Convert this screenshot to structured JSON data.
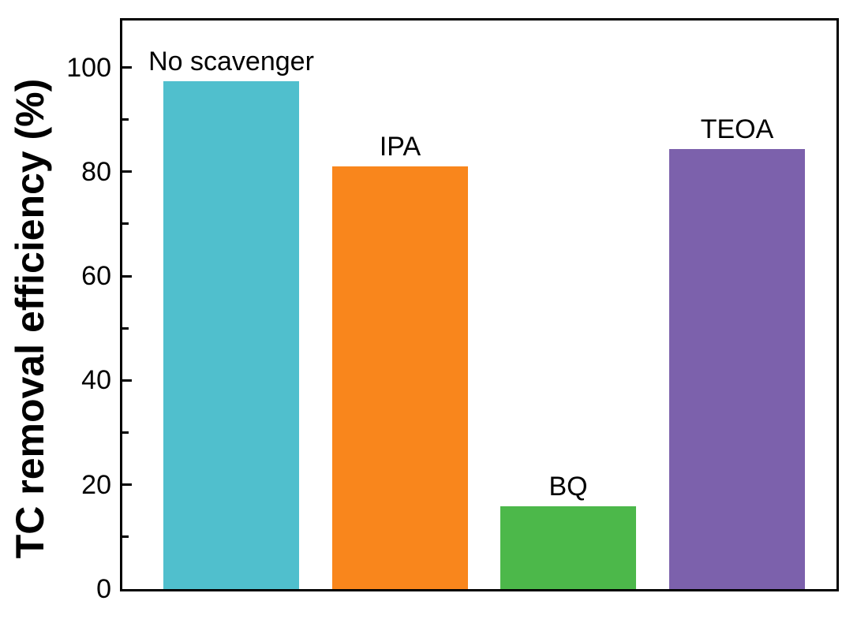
{
  "chart_data": {
    "type": "bar",
    "title": "",
    "xlabel": "",
    "ylabel": "TC removal efficiency (%)",
    "ylim": [
      0,
      109
    ],
    "yticks_major": [
      0,
      20,
      40,
      60,
      80,
      100
    ],
    "yticks_minor": [
      10,
      30,
      50,
      70,
      90
    ],
    "categories": [
      "No scavenger",
      "IPA",
      "BQ",
      "TEOA"
    ],
    "values": [
      97.4,
      81.1,
      15.9,
      84.4
    ],
    "bar_colors": [
      "#50BFCD",
      "#F9861C",
      "#4CB84A",
      "#7C61AC"
    ],
    "grid": false,
    "legend_position": "none",
    "axis_color": "#000000",
    "tick_direction": "in"
  }
}
